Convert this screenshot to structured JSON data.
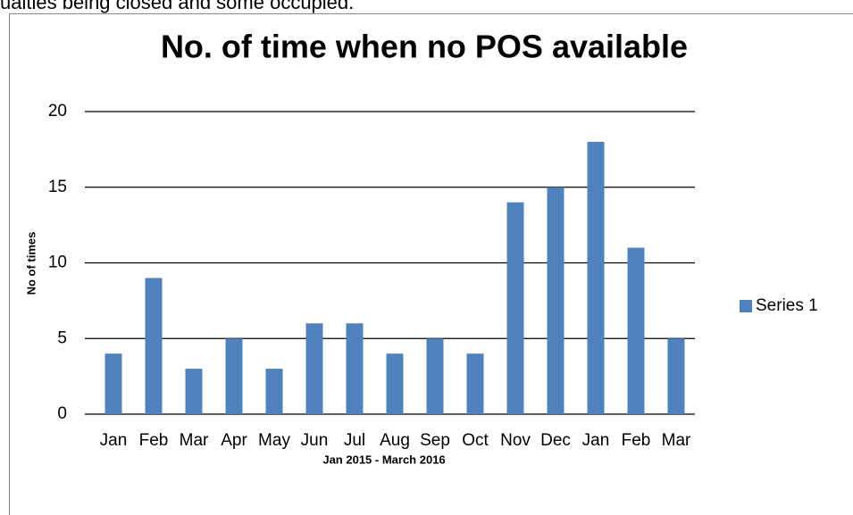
{
  "top_text": "ualties being closed and some occupied.",
  "chart_data": {
    "type": "bar",
    "title": "No. of time when no POS available",
    "x_label": "Jan 2015 - March 2016",
    "y_label": "No of times",
    "categories": [
      "Jan",
      "Feb",
      "Mar",
      "Apr",
      "May",
      "Jun",
      "Jul",
      "Aug",
      "Sep",
      "Oct",
      "Nov",
      "Dec",
      "Jan",
      "Feb",
      "Mar"
    ],
    "series": [
      {
        "name": "Series 1",
        "color": "#4f81bd",
        "values": [
          4,
          9,
          3,
          5,
          3,
          6,
          6,
          4,
          5,
          4,
          14,
          15,
          18,
          11,
          5
        ]
      }
    ],
    "ylim": [
      0,
      20
    ],
    "yticks": [
      0,
      5,
      10,
      15,
      20
    ],
    "grid": true,
    "legend": "right"
  }
}
